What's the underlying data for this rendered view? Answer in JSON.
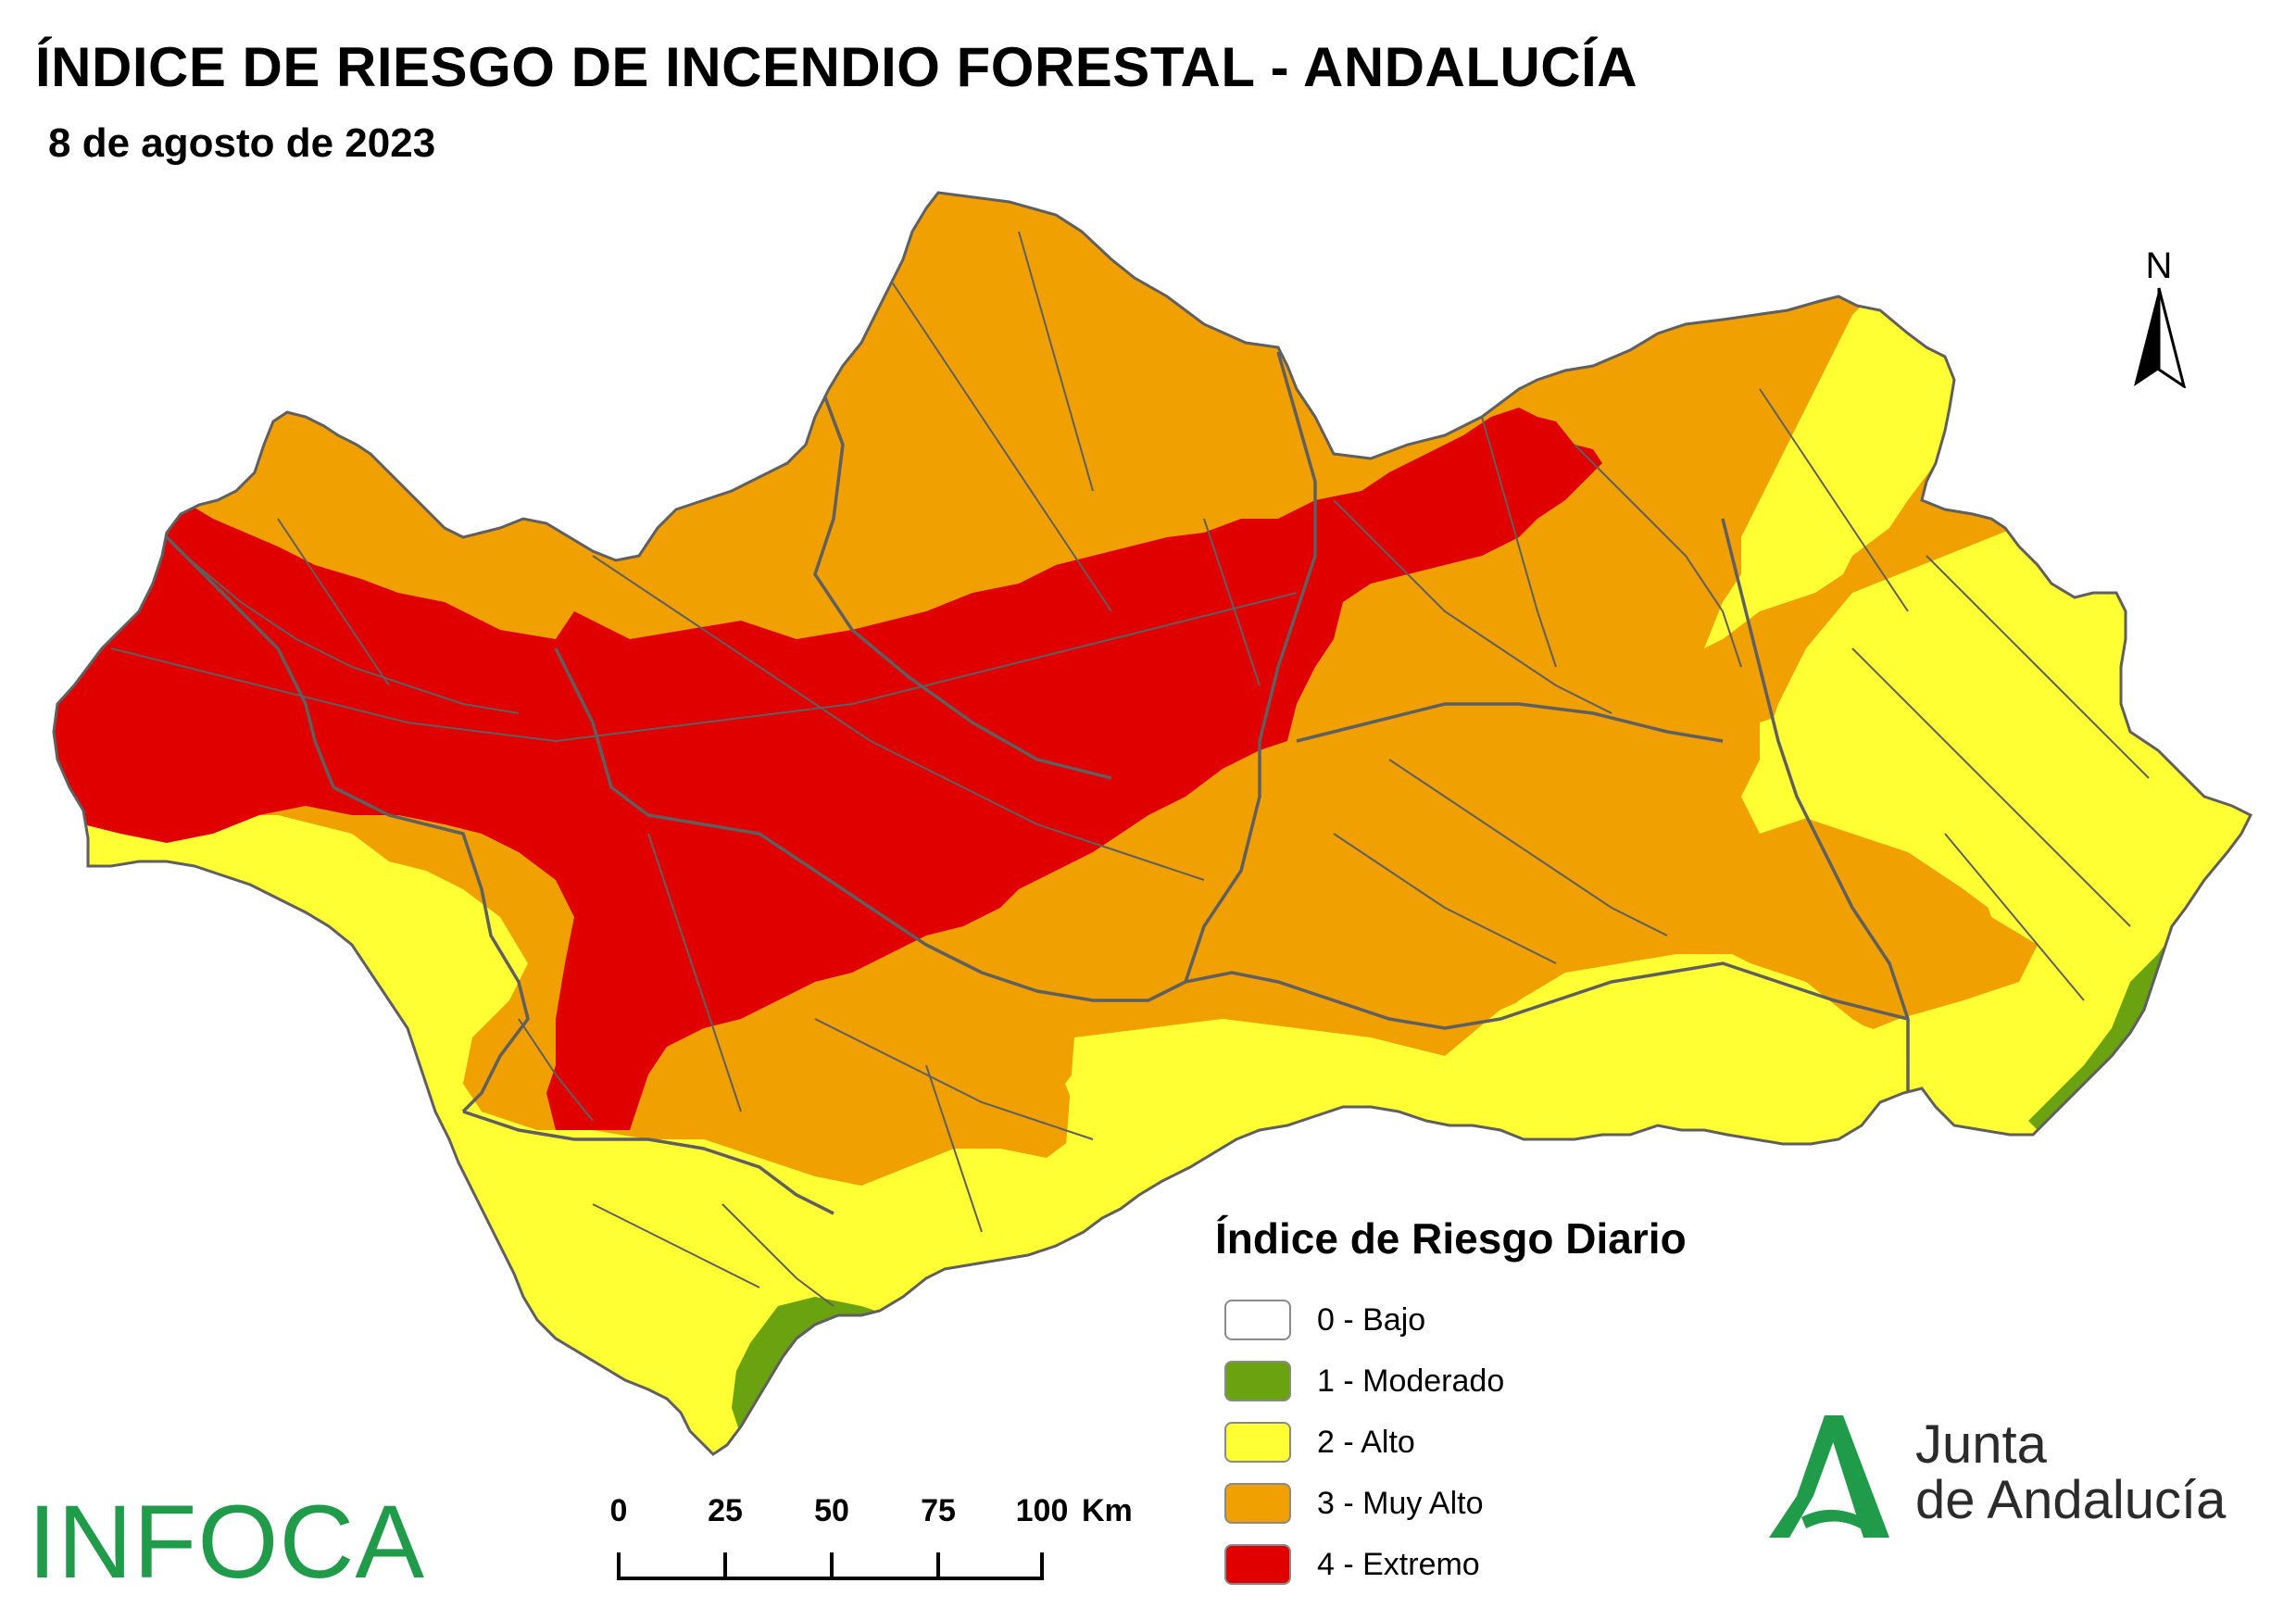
{
  "header": {
    "title": "ÍNDICE DE RIESGO DE INCENDIO FORESTAL - ANDALUCÍA",
    "date": "8 de agosto de 2023"
  },
  "north_arrow": {
    "label": "N"
  },
  "legend": {
    "title": "Índice de Riesgo Diario",
    "items": [
      {
        "label": "0 - Bajo",
        "color": "#ffffff"
      },
      {
        "label": "1 - Moderado",
        "color": "#6aa30f"
      },
      {
        "label": "2 - Alto",
        "color": "#ffff33"
      },
      {
        "label": "3 - Muy Alto",
        "color": "#f0a000"
      },
      {
        "label": "4 - Extremo",
        "color": "#e00000"
      }
    ]
  },
  "scale_bar": {
    "ticks": [
      "0",
      "25",
      "50",
      "75",
      "100"
    ],
    "unit": "Km"
  },
  "logos": {
    "infoca": "INFOCA",
    "junta_line1": "Junta",
    "junta_line2": "de Andalucía",
    "infoca_color": "#1f9b4a",
    "junta_green": "#1f9b4a"
  },
  "map_colors": {
    "boundary": "#5f5f5f",
    "moderado": "#6aa30f",
    "alto": "#ffff33",
    "muy_alto": "#f0a000",
    "extremo": "#e00000"
  }
}
